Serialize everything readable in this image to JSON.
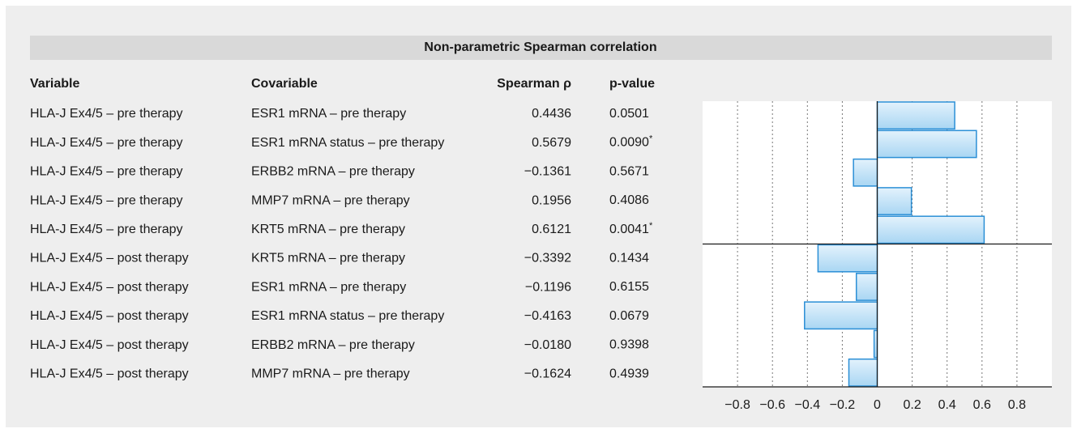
{
  "title": "Non-parametric Spearman correlation",
  "columns": [
    "Variable",
    "Covariable",
    "Spearman ρ",
    "p-value"
  ],
  "rows": [
    {
      "variable": "HLA-J Ex4/5 – pre therapy",
      "covariable": "ESR1 mRNA – pre therapy",
      "p_value": "0.0501"
    },
    {
      "variable": "HLA-J Ex4/5 – pre therapy",
      "covariable": "ESR1 mRNA status – pre therapy",
      "p_value": "0.0090",
      "note": "*"
    },
    {
      "variable": "HLA-J Ex4/5 – pre therapy",
      "covariable": "ERBB2 mRNA – pre therapy",
      "p_value": "0.5671"
    },
    {
      "variable": "HLA-J Ex4/5 – pre therapy",
      "covariable": "MMP7 mRNA – pre therapy",
      "p_value": "0.4086"
    },
    {
      "variable": "HLA-J Ex4/5 – pre therapy",
      "covariable": "KRT5 mRNA – pre therapy",
      "p_value": "0.0041",
      "note": "*"
    },
    {
      "variable": "HLA-J Ex4/5 – post therapy",
      "covariable": "KRT5 mRNA – pre therapy",
      "p_value": "0.1434"
    },
    {
      "variable": "HLA-J Ex4/5 – post therapy",
      "covariable": "ESR1 mRNA – pre therapy",
      "p_value": "0.6155"
    },
    {
      "variable": "HLA-J Ex4/5 – post therapy",
      "covariable": "ESR1 mRNA status – pre therapy",
      "p_value": "0.0679"
    },
    {
      "variable": "HLA-J Ex4/5 – post therapy",
      "covariable": "ERBB2 mRNA – pre therapy",
      "p_value": "0.9398"
    },
    {
      "variable": "HLA-J Ex4/5 – post therapy",
      "covariable": "MMP7 mRNA – pre therapy",
      "p_value": "0.4939"
    }
  ],
  "chart_data": {
    "type": "bar",
    "orientation": "horizontal",
    "color": "#bfe1f6",
    "edge_color": "#2b8fd6",
    "values": [
      0.4436,
      0.5679,
      -0.1361,
      0.1956,
      0.6121,
      -0.3392,
      -0.1196,
      -0.4163,
      -0.018,
      -0.1624
    ],
    "value_labels": [
      "0.4436",
      "0.5679",
      "−0.1361",
      "0.1956",
      "0.6121",
      "−0.3392",
      "−0.1196",
      "−0.4163",
      "−0.0180",
      "−0.1624"
    ],
    "xlim": [
      -1,
      1
    ],
    "xticks": [
      {
        "value": -0.8,
        "label": "−0.8"
      },
      {
        "value": -0.6,
        "label": "−0.6"
      },
      {
        "value": -0.4,
        "label": "−0.4"
      },
      {
        "value": -0.2,
        "label": "−0.2"
      },
      0,
      0.2,
      0.4,
      0.6,
      0.8
    ],
    "grid": true
  }
}
